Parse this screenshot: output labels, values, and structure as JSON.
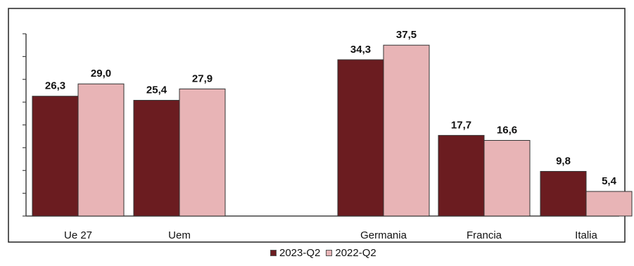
{
  "chart_data": {
    "type": "bar",
    "categories": [
      "Ue 27",
      "Uem",
      "Germania",
      "Francia",
      "Italia"
    ],
    "series": [
      {
        "name": "2023-Q2",
        "values": [
          26.3,
          25.4,
          34.3,
          17.7,
          9.8
        ],
        "labels": [
          "26,3",
          "25,4",
          "34,3",
          "17,7",
          "9,8"
        ]
      },
      {
        "name": "2022-Q2",
        "values": [
          29.0,
          27.9,
          37.5,
          16.6,
          5.4
        ],
        "labels": [
          "29,0",
          "27,9",
          "37,5",
          "16,6",
          "5,4"
        ]
      }
    ],
    "ylim": [
      0,
      40
    ],
    "grid": false,
    "legend": "bottom",
    "title": "",
    "xlabel": "",
    "ylabel": "",
    "colors": {
      "2023-Q2": "#6b1c20",
      "2022-Q2": "#e8b4b6"
    }
  },
  "legend": {
    "items": [
      "2023-Q2",
      "2022-Q2"
    ]
  }
}
